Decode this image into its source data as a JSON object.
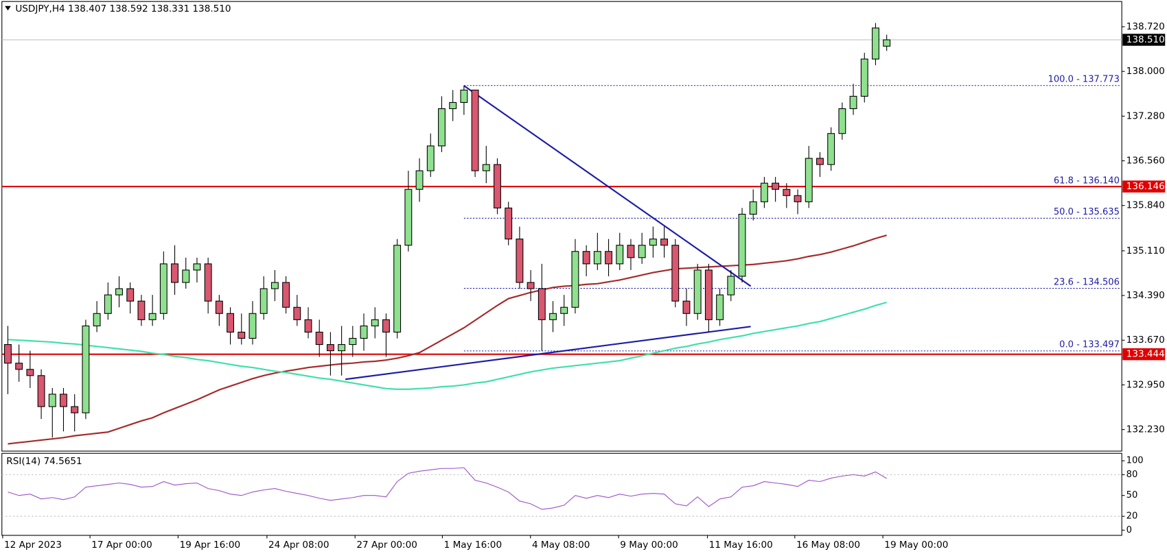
{
  "chart_data": {
    "type": "candlestick",
    "title": "USDJPY,H4 138.407 138.592 138.331 138.510",
    "up_color": "#8fe08f",
    "down_color": "#d9576f",
    "outline_color": "#000000",
    "candles": [
      [
        133.6,
        133.9,
        132.8,
        133.3
      ],
      [
        133.3,
        133.6,
        133.0,
        133.2
      ],
      [
        133.2,
        133.5,
        132.9,
        133.1
      ],
      [
        133.1,
        133.2,
        132.4,
        132.6
      ],
      [
        132.6,
        132.9,
        132.1,
        132.8
      ],
      [
        132.8,
        132.9,
        132.2,
        132.6
      ],
      [
        132.6,
        132.8,
        132.2,
        132.5
      ],
      [
        132.5,
        134.0,
        132.4,
        133.9
      ],
      [
        133.9,
        134.3,
        133.8,
        134.1
      ],
      [
        134.1,
        134.6,
        134.0,
        134.4
      ],
      [
        134.4,
        134.7,
        134.2,
        134.5
      ],
      [
        134.5,
        134.6,
        134.1,
        134.3
      ],
      [
        134.3,
        134.4,
        133.9,
        134.0
      ],
      [
        134.0,
        134.4,
        133.9,
        134.1
      ],
      [
        134.1,
        135.1,
        134.0,
        134.9
      ],
      [
        134.9,
        135.2,
        134.4,
        134.6
      ],
      [
        134.6,
        135.0,
        134.5,
        134.8
      ],
      [
        134.8,
        135.0,
        134.6,
        134.9
      ],
      [
        134.9,
        135.0,
        134.1,
        134.3
      ],
      [
        134.3,
        134.4,
        133.9,
        134.1
      ],
      [
        134.1,
        134.2,
        133.6,
        133.8
      ],
      [
        133.8,
        134.1,
        133.6,
        133.7
      ],
      [
        133.7,
        134.3,
        133.6,
        134.1
      ],
      [
        134.1,
        134.7,
        134.0,
        134.5
      ],
      [
        134.5,
        134.8,
        134.3,
        134.6
      ],
      [
        134.6,
        134.7,
        134.1,
        134.2
      ],
      [
        134.2,
        134.4,
        133.9,
        134.0
      ],
      [
        134.0,
        134.2,
        133.7,
        133.8
      ],
      [
        133.8,
        134.0,
        133.4,
        133.6
      ],
      [
        133.6,
        133.8,
        133.1,
        133.5
      ],
      [
        133.5,
        133.9,
        133.1,
        133.6
      ],
      [
        133.6,
        133.9,
        133.4,
        133.7
      ],
      [
        133.7,
        134.1,
        133.5,
        133.9
      ],
      [
        133.9,
        134.2,
        133.7,
        134.0
      ],
      [
        134.0,
        134.1,
        133.4,
        133.8
      ],
      [
        133.8,
        135.3,
        133.7,
        135.2
      ],
      [
        135.2,
        136.4,
        135.1,
        136.1
      ],
      [
        136.1,
        136.6,
        135.9,
        136.4
      ],
      [
        136.4,
        137.0,
        136.3,
        136.8
      ],
      [
        136.8,
        137.6,
        136.7,
        137.4
      ],
      [
        137.4,
        137.7,
        137.2,
        137.5
      ],
      [
        137.5,
        137.773,
        137.3,
        137.7
      ],
      [
        137.7,
        137.7,
        136.3,
        136.4
      ],
      [
        136.4,
        136.8,
        136.2,
        136.5
      ],
      [
        136.5,
        136.6,
        135.7,
        135.8
      ],
      [
        135.8,
        135.9,
        135.2,
        135.3
      ],
      [
        135.3,
        135.5,
        134.5,
        134.6
      ],
      [
        134.6,
        134.8,
        134.3,
        134.5
      ],
      [
        134.5,
        134.9,
        133.497,
        134.0
      ],
      [
        134.0,
        134.3,
        133.8,
        134.1
      ],
      [
        134.1,
        134.4,
        133.9,
        134.2
      ],
      [
        134.2,
        135.3,
        134.1,
        135.1
      ],
      [
        135.1,
        135.2,
        134.7,
        134.9
      ],
      [
        134.9,
        135.4,
        134.8,
        135.1
      ],
      [
        135.1,
        135.3,
        134.7,
        134.9
      ],
      [
        134.9,
        135.4,
        134.8,
        135.2
      ],
      [
        135.2,
        135.3,
        134.8,
        135.0
      ],
      [
        135.0,
        135.4,
        134.9,
        135.2
      ],
      [
        135.2,
        135.5,
        135.0,
        135.3
      ],
      [
        135.3,
        135.5,
        135.0,
        135.2
      ],
      [
        135.2,
        135.3,
        134.2,
        134.3
      ],
      [
        134.3,
        134.5,
        133.9,
        134.1
      ],
      [
        134.1,
        134.9,
        134.0,
        134.8
      ],
      [
        134.8,
        134.9,
        133.8,
        134.0
      ],
      [
        134.0,
        134.5,
        133.9,
        134.4
      ],
      [
        134.4,
        134.8,
        134.3,
        134.7
      ],
      [
        134.7,
        135.8,
        134.6,
        135.7
      ],
      [
        135.7,
        136.1,
        135.6,
        135.9
      ],
      [
        135.9,
        136.3,
        135.8,
        136.2
      ],
      [
        136.2,
        136.3,
        135.9,
        136.1
      ],
      [
        136.1,
        136.2,
        135.8,
        136.0
      ],
      [
        136.0,
        136.1,
        135.7,
        135.9
      ],
      [
        135.9,
        136.8,
        135.8,
        136.6
      ],
      [
        136.6,
        136.7,
        136.3,
        136.5
      ],
      [
        136.5,
        137.1,
        136.4,
        137.0
      ],
      [
        137.0,
        137.5,
        136.9,
        137.4
      ],
      [
        137.4,
        137.8,
        137.3,
        137.6
      ],
      [
        137.6,
        138.3,
        137.5,
        138.2
      ],
      [
        138.2,
        138.78,
        138.1,
        138.7
      ],
      [
        138.407,
        138.592,
        138.331,
        138.51
      ]
    ],
    "ylim": [
      131.883,
      139.127
    ],
    "yticks": [
      {
        "value": 138.72,
        "label": "138.720"
      },
      {
        "value": 138.0,
        "label": "138.000"
      },
      {
        "value": 137.28,
        "label": "137.280"
      },
      {
        "value": 136.56,
        "label": "136.560"
      },
      {
        "value": 135.84,
        "label": "135.840"
      },
      {
        "value": 135.11,
        "label": "135.110"
      },
      {
        "value": 134.39,
        "label": "134.390"
      },
      {
        "value": 133.67,
        "label": "133.670"
      },
      {
        "value": 132.95,
        "label": "132.950"
      },
      {
        "value": 132.23,
        "label": "132.230"
      }
    ],
    "x_labels": [
      "12 Apr 2023",
      "17 Apr 00:00",
      "19 Apr 16:00",
      "24 Apr 08:00",
      "27 Apr 00:00",
      "1 May 16:00",
      "4 May 08:00",
      "9 May 00:00",
      "11 May 16:00",
      "16 May 08:00",
      "19 May 00:00"
    ],
    "moving_averages": [
      {
        "color": "#a52a2a",
        "values": [
          132.0,
          132.02,
          132.04,
          132.06,
          132.08,
          132.1,
          132.13,
          132.15,
          132.17,
          132.19,
          132.25,
          132.31,
          132.37,
          132.42,
          132.5,
          132.57,
          132.64,
          132.71,
          132.79,
          132.87,
          132.93,
          132.99,
          133.05,
          133.1,
          133.14,
          133.17,
          133.2,
          133.23,
          133.25,
          133.27,
          133.29,
          133.3,
          133.32,
          133.33,
          133.35,
          133.38,
          133.42,
          133.47,
          133.57,
          133.67,
          133.77,
          133.87,
          133.99,
          134.11,
          134.23,
          134.34,
          134.39,
          134.44,
          134.48,
          134.52,
          134.54,
          134.55,
          134.57,
          134.58,
          134.61,
          134.64,
          134.68,
          134.72,
          134.76,
          134.79,
          134.82,
          134.83,
          134.84,
          134.85,
          134.86,
          134.87,
          134.88,
          134.89,
          134.91,
          134.93,
          134.95,
          134.98,
          135.02,
          135.05,
          135.09,
          135.14,
          135.19,
          135.25,
          135.31,
          135.36
        ]
      },
      {
        "color": "#3ee0aa",
        "values": [
          133.68,
          133.67,
          133.66,
          133.65,
          133.64,
          133.62,
          133.61,
          133.59,
          133.57,
          133.55,
          133.53,
          133.51,
          133.49,
          133.46,
          133.44,
          133.41,
          133.39,
          133.36,
          133.34,
          133.31,
          133.28,
          133.25,
          133.23,
          133.2,
          133.17,
          133.15,
          133.12,
          133.09,
          133.06,
          133.04,
          133.01,
          132.98,
          132.95,
          132.92,
          132.89,
          132.88,
          132.88,
          132.89,
          132.9,
          132.92,
          132.93,
          132.95,
          132.98,
          133.0,
          133.04,
          133.08,
          133.12,
          133.16,
          133.19,
          133.22,
          133.24,
          133.26,
          133.28,
          133.3,
          133.32,
          133.34,
          133.38,
          133.42,
          133.46,
          133.5,
          133.54,
          133.57,
          133.61,
          133.64,
          133.68,
          133.71,
          133.74,
          133.78,
          133.81,
          133.84,
          133.87,
          133.9,
          133.94,
          133.97,
          134.02,
          134.07,
          134.12,
          134.17,
          134.23,
          134.28
        ]
      }
    ],
    "levels": [
      {
        "value": 136.146,
        "label": "136.146",
        "color": "#e00000"
      },
      {
        "value": 133.444,
        "label": "133.444",
        "color": "#e00000"
      }
    ],
    "current_price": {
      "value": 138.51,
      "label": "138.510"
    },
    "fib_color": "#1c1ca8",
    "fib_levels": [
      {
        "value": 137.773,
        "label": "100.0 - 137.773"
      },
      {
        "value": 136.14,
        "label": "61.8 - 136.140"
      },
      {
        "value": 135.635,
        "label": "50.0 - 135.635"
      },
      {
        "value": 134.506,
        "label": "23.6 - 134.506"
      },
      {
        "value": 133.497,
        "label": "0.0 - 133.497"
      }
    ],
    "trendlines": [
      {
        "color": "#1c1ca8",
        "values": [
          137.77,
          134.54
        ]
      },
      {
        "color": "#1c1ca8",
        "values": [
          133.04,
          133.89
        ]
      }
    ],
    "rsi": {
      "title": "RSI(14) 74.5651",
      "color": "#9a4fc8",
      "values": [
        55,
        50,
        52,
        45,
        47,
        44,
        48,
        62,
        64,
        66,
        68,
        66,
        62,
        63,
        70,
        65,
        67,
        68,
        60,
        57,
        52,
        50,
        55,
        58,
        60,
        56,
        53,
        50,
        46,
        43,
        45,
        47,
        50,
        50,
        48,
        70,
        82,
        85,
        87,
        89,
        89,
        90,
        72,
        68,
        62,
        55,
        42,
        38,
        30,
        32,
        36,
        50,
        46,
        50,
        47,
        52,
        49,
        52,
        53,
        52,
        38,
        35,
        48,
        34,
        45,
        48,
        62,
        64,
        70,
        68,
        66,
        63,
        72,
        70,
        75,
        78,
        80,
        78,
        84,
        74.5651
      ],
      "ylim": [
        -7.5,
        110.75
      ],
      "yticks": [
        100,
        80,
        50,
        20,
        0
      ],
      "levels": [
        80,
        20
      ]
    }
  }
}
